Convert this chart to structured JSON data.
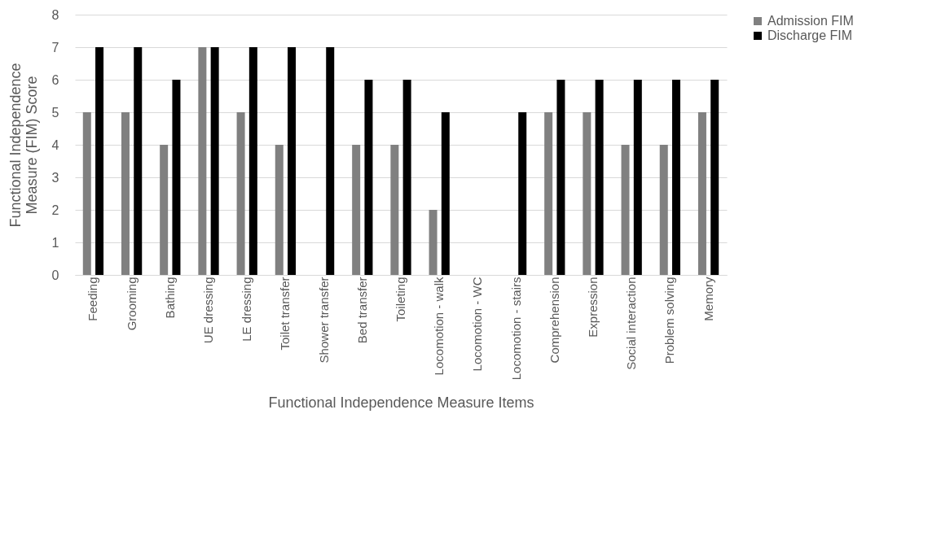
{
  "chart_data": {
    "type": "bar",
    "xlabel": "Functional Independence Measure Items",
    "ylabel": "Functional Independence Measure (FIM) Score",
    "categories": [
      "Feeding",
      "Grooming",
      "Bathing",
      "UE dressing",
      "LE dressing",
      "Toilet transfer",
      "Shower transfer",
      "Bed transfer",
      "Toileting",
      "Locomotion - walk",
      "Locomotion - WC",
      "Locomotion - stairs",
      "Comprehension",
      "Expression",
      "Social interaction",
      "Problem solving",
      "Memory"
    ],
    "series": [
      {
        "name": "Admission FIM",
        "color": "#808080",
        "values": [
          5,
          5,
          4,
          7,
          5,
          4,
          0,
          4,
          4,
          2,
          0,
          0,
          5,
          5,
          4,
          4,
          5
        ]
      },
      {
        "name": "Discharge FIM",
        "color": "#000000",
        "values": [
          7,
          7,
          6,
          7,
          7,
          7,
          7,
          6,
          6,
          5,
          0,
          5,
          6,
          6,
          6,
          6,
          6
        ]
      }
    ],
    "ylim": [
      0,
      8
    ],
    "yticks": [
      0,
      1,
      2,
      3,
      4,
      5,
      6,
      7,
      8
    ],
    "grid": "y",
    "legend": "right"
  }
}
